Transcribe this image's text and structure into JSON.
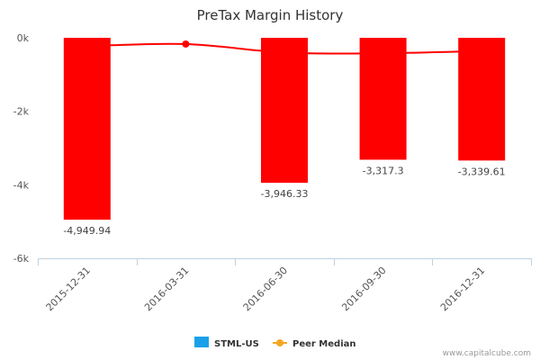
{
  "chart_data": {
    "type": "bar",
    "title": "PreTax Margin History",
    "categories": [
      "2015-12-31",
      "2016-03-31",
      "2016-06-30",
      "2016-09-30",
      "2016-12-31"
    ],
    "ylim": [
      -6000,
      0
    ],
    "yticks": [
      {
        "value": 0,
        "label": "0k"
      },
      {
        "value": -2000,
        "label": "-2k"
      },
      {
        "value": -4000,
        "label": "-4k"
      },
      {
        "value": -6000,
        "label": "-6k"
      }
    ],
    "grid": false,
    "legend_placement": "bottom-center",
    "series": [
      {
        "name": "STML-US",
        "type": "bar",
        "color": "#ff0000",
        "legend_color": "#1aa0e8",
        "values": [
          -4949.94,
          null,
          -3946.33,
          -3317.3,
          -3339.61
        ],
        "labels": [
          "-4,949.94",
          "",
          "-3,946.33",
          "-3,317.3",
          "-3,339.61"
        ]
      },
      {
        "name": "Peer Median",
        "type": "line",
        "color": "#ff0000",
        "legend_color": "#f5a623",
        "values": [
          -230,
          -170,
          -400,
          -420,
          -360
        ],
        "markers": [
          false,
          true,
          false,
          false,
          false
        ]
      }
    ]
  },
  "credit": "www.capitalcube.com"
}
